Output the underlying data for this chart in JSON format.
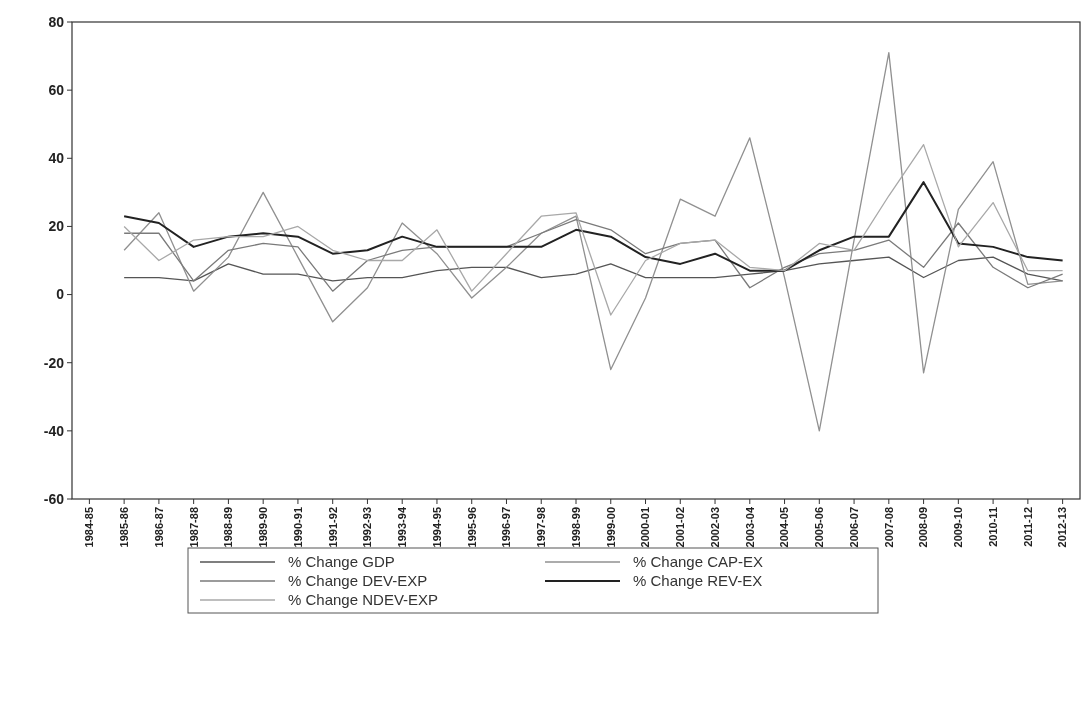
{
  "chart_data": {
    "type": "line",
    "categories": [
      "1984-85",
      "1985-86",
      "1986-87",
      "1987-88",
      "1988-89",
      "1989-90",
      "1990-91",
      "1991-92",
      "1992-93",
      "1993-94",
      "1994-95",
      "1995-96",
      "1996-97",
      "1997-98",
      "1998-99",
      "1999-00",
      "2000-01",
      "2001-02",
      "2002-03",
      "2003-04",
      "2004-05",
      "2005-06",
      "2006-07",
      "2007-08",
      "2008-09",
      "2009-10",
      "2010-11",
      "2011-12",
      "2012-13"
    ],
    "series": [
      {
        "name": "% Change GDP",
        "color": "#555555",
        "values": [
          null,
          5,
          5,
          4,
          9,
          6,
          6,
          4,
          5,
          5,
          7,
          8,
          8,
          5,
          6,
          9,
          5,
          5,
          5,
          6,
          7,
          9,
          10,
          11,
          5,
          10,
          11,
          6,
          4
        ]
      },
      {
        "name": "% Change CAP-EX",
        "color": "#909090",
        "values": [
          null,
          13,
          24,
          1,
          11,
          30,
          11,
          -8,
          2,
          21,
          12,
          -1,
          8,
          18,
          23,
          -22,
          -1,
          28,
          23,
          46,
          5,
          -40,
          16,
          71,
          -23,
          25,
          39,
          3,
          4
        ]
      },
      {
        "name": "% Change DEV-EXP",
        "color": "#7a7a7a",
        "values": [
          null,
          18,
          18,
          4,
          13,
          15,
          14,
          1,
          10,
          13,
          14,
          14,
          14,
          18,
          22,
          19,
          12,
          15,
          16,
          2,
          8,
          12,
          13,
          16,
          8,
          21,
          8,
          2,
          6
        ]
      },
      {
        "name": "% Change REV-EX",
        "color": "#222222",
        "values": [
          null,
          23,
          21,
          14,
          17,
          18,
          17,
          12,
          13,
          17,
          14,
          14,
          14,
          14,
          19,
          17,
          11,
          9,
          12,
          7,
          7,
          13,
          17,
          17,
          33,
          15,
          14,
          11,
          10
        ]
      },
      {
        "name": "% Change NDEV-EXP",
        "color": "#a8a8a8",
        "values": [
          null,
          20,
          10,
          16,
          17,
          17,
          20,
          13,
          10,
          10,
          19,
          1,
          12,
          23,
          24,
          -6,
          10,
          15,
          16,
          8,
          7,
          15,
          13,
          29,
          44,
          14,
          27,
          7,
          7
        ]
      }
    ],
    "ylim": [
      -60,
      80
    ],
    "yticks": [
      -60,
      -40,
      -20,
      0,
      20,
      40,
      60,
      80
    ],
    "grid": false,
    "legend": "bottom",
    "line_style": "solid"
  }
}
